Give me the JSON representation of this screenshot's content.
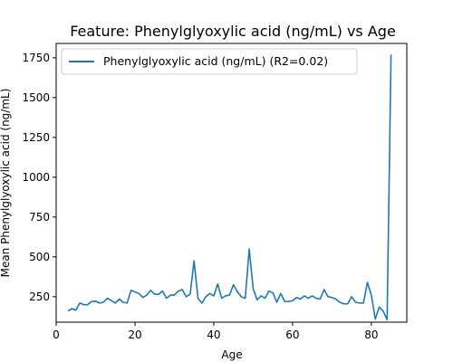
{
  "chart_data": {
    "type": "line",
    "title": "Feature: Phenylglyoxylic acid (ng/mL) vs Age",
    "xlabel": "Age",
    "ylabel": "Mean Phenylglyoxylic acid (ng/mL)",
    "xlim": [
      0,
      89
    ],
    "ylim": [
      90,
      1840
    ],
    "xticks": [
      0,
      20,
      40,
      60,
      80
    ],
    "yticks": [
      250,
      500,
      750,
      1000,
      1250,
      1500,
      1750
    ],
    "grid": false,
    "legend_position": "top-left",
    "series": [
      {
        "name": "Phenylglyoxylic acid (ng/mL) (R2=0.02)",
        "color": "#1f77b4",
        "x": [
          3,
          4,
          5,
          6,
          7,
          8,
          9,
          10,
          11,
          12,
          13,
          14,
          15,
          16,
          17,
          18,
          19,
          20,
          21,
          22,
          23,
          24,
          25,
          26,
          27,
          28,
          29,
          30,
          31,
          32,
          33,
          34,
          35,
          36,
          37,
          38,
          39,
          40,
          41,
          42,
          43,
          44,
          45,
          46,
          47,
          48,
          49,
          50,
          51,
          52,
          53,
          54,
          55,
          56,
          57,
          58,
          59,
          60,
          61,
          62,
          63,
          64,
          65,
          66,
          67,
          68,
          69,
          70,
          71,
          72,
          73,
          74,
          75,
          76,
          77,
          78,
          79,
          80,
          81,
          82,
          83,
          84,
          85
        ],
        "y": [
          160,
          175,
          165,
          210,
          200,
          200,
          220,
          222,
          210,
          215,
          240,
          225,
          210,
          235,
          215,
          210,
          290,
          280,
          270,
          245,
          260,
          290,
          265,
          265,
          285,
          240,
          260,
          260,
          285,
          295,
          250,
          265,
          475,
          240,
          210,
          250,
          270,
          255,
          330,
          240,
          255,
          260,
          325,
          280,
          250,
          240,
          550,
          300,
          230,
          255,
          240,
          285,
          275,
          215,
          270,
          220,
          220,
          225,
          245,
          235,
          255,
          240,
          255,
          240,
          235,
          295,
          250,
          245,
          235,
          215,
          205,
          205,
          250,
          215,
          210,
          210,
          340,
          260,
          110,
          185,
          160,
          105,
          1770
        ]
      }
    ]
  }
}
